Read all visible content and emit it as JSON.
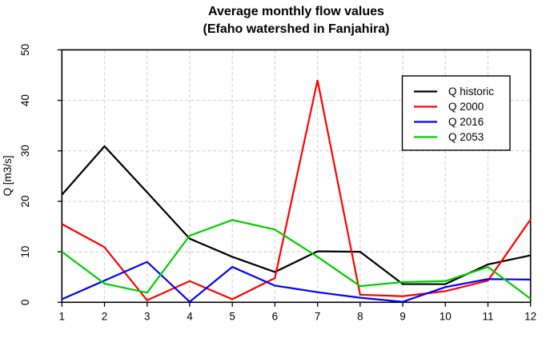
{
  "title": {
    "line1": "Average monthly flow values",
    "line2": "(Efaho watershed in Fanjahira)"
  },
  "chart_data": {
    "type": "line",
    "x": [
      1,
      2,
      3,
      4,
      5,
      6,
      7,
      8,
      9,
      10,
      11,
      12
    ],
    "xtick_labels": [
      "1",
      "2",
      "3",
      "4",
      "5",
      "6",
      "7",
      "8",
      "9",
      "10",
      "11",
      "12"
    ],
    "yticks": [
      0,
      10,
      20,
      30,
      40,
      50
    ],
    "ylim": [
      0,
      50
    ],
    "xlabel": "",
    "ylabel": "Q [m3/s]",
    "grid": "on",
    "grid_style": "dashed",
    "legend_position": "top-right",
    "series": [
      {
        "name": "Q historic",
        "color": "#000000",
        "values": [
          21.3,
          30.9,
          21.8,
          12.6,
          9.0,
          6.0,
          10.1,
          10.0,
          3.6,
          3.6,
          7.5,
          9.3
        ]
      },
      {
        "name": "Q 2000",
        "color": "#ff0000",
        "values": [
          15.5,
          10.9,
          0.4,
          4.2,
          0.6,
          4.8,
          44.0,
          1.5,
          1.2,
          2.2,
          4.3,
          16.4
        ]
      },
      {
        "name": "Q 2016",
        "color": "#0000ff",
        "values": [
          0.6,
          4.3,
          8.0,
          0.1,
          7.0,
          3.3,
          2.0,
          0.9,
          0.1,
          3.0,
          4.6,
          4.5
        ]
      },
      {
        "name": "Q 2053",
        "color": "#00cd00",
        "values": [
          10.0,
          3.7,
          1.9,
          13.2,
          16.3,
          14.4,
          9.0,
          3.2,
          4.0,
          4.2,
          7.0,
          0.7
        ]
      }
    ]
  },
  "colors": {
    "background": "#ffffff",
    "axis": "#000000",
    "grid": "#d3d3d3",
    "legend_border": "#000000",
    "legend_background": "#ffffff"
  }
}
